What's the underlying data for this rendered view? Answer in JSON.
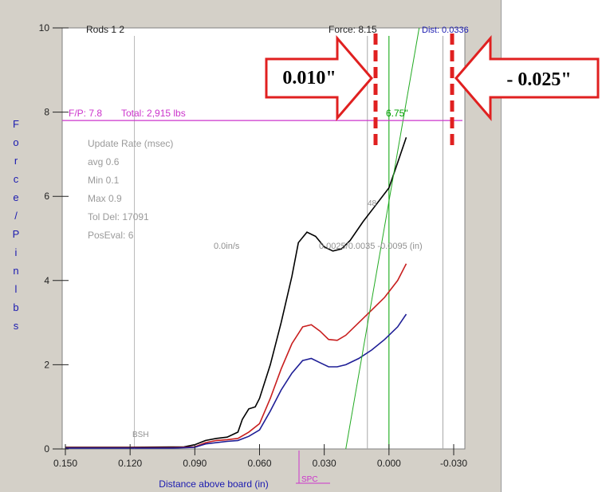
{
  "chart_data": {
    "type": "line",
    "xlabel": "Distance above board (in)",
    "ylabel": "Force/Pin lbs",
    "xlim": [
      0.15,
      -0.03
    ],
    "ylim": [
      0,
      10
    ],
    "x_ticks": [
      "0.150",
      "0.120",
      "0.090",
      "0.060",
      "0.030",
      "0.000",
      "-0.030"
    ],
    "y_ticks": [
      "0",
      "2",
      "4",
      "6",
      "8",
      "10"
    ],
    "grid": false,
    "header": {
      "rods": "Rods 1 2",
      "force": "Force: 8.15",
      "dist": "Dist: 0.0336"
    },
    "fp_line": {
      "y": 7.8,
      "label": "F/P: 7.8",
      "total": "Total: 2,915 lbs"
    },
    "info_lines": [
      "Update Rate (msec)",
      "avg 0.6",
      "Min 0.1",
      "Max 0.9",
      "Tol Del: 17091",
      "PosEval: 6"
    ],
    "annotations": {
      "rate": "0.0in/s",
      "pos": "0.0025/0.0035 -0.0095 (in)",
      "at_x": "6.75\"",
      "bsh": "BSH",
      "spc": "SPC",
      "small_mark": "48"
    },
    "vlines": [
      {
        "x": 0.118,
        "color": "#b8b8b8"
      },
      {
        "x": 0.01,
        "color": "#a8a8a8"
      },
      {
        "x": 0.0,
        "color": "#00a000"
      },
      {
        "x": -0.025,
        "color": "#a8a8a8"
      }
    ],
    "series": [
      {
        "color": "#000000",
        "points": [
          [
            0.15,
            0.04
          ],
          [
            0.12,
            0.04
          ],
          [
            0.095,
            0.05
          ],
          [
            0.09,
            0.1
          ],
          [
            0.085,
            0.2
          ],
          [
            0.08,
            0.25
          ],
          [
            0.075,
            0.28
          ],
          [
            0.07,
            0.4
          ],
          [
            0.068,
            0.7
          ],
          [
            0.065,
            0.95
          ],
          [
            0.062,
            1.0
          ],
          [
            0.06,
            1.2
          ],
          [
            0.055,
            2.0
          ],
          [
            0.05,
            3.0
          ],
          [
            0.045,
            4.1
          ],
          [
            0.042,
            4.9
          ],
          [
            0.038,
            5.15
          ],
          [
            0.034,
            5.05
          ],
          [
            0.03,
            4.8
          ],
          [
            0.026,
            4.7
          ],
          [
            0.022,
            4.75
          ],
          [
            0.018,
            4.95
          ],
          [
            0.012,
            5.4
          ],
          [
            0.006,
            5.8
          ],
          [
            0.0,
            6.2
          ],
          [
            -0.004,
            6.8
          ],
          [
            -0.008,
            7.4
          ]
        ]
      },
      {
        "color": "#c81e1e",
        "points": [
          [
            0.15,
            0.03
          ],
          [
            0.1,
            0.03
          ],
          [
            0.09,
            0.05
          ],
          [
            0.085,
            0.15
          ],
          [
            0.08,
            0.2
          ],
          [
            0.075,
            0.22
          ],
          [
            0.07,
            0.25
          ],
          [
            0.065,
            0.4
          ],
          [
            0.06,
            0.6
          ],
          [
            0.055,
            1.2
          ],
          [
            0.05,
            1.9
          ],
          [
            0.045,
            2.5
          ],
          [
            0.04,
            2.9
          ],
          [
            0.036,
            2.95
          ],
          [
            0.032,
            2.8
          ],
          [
            0.028,
            2.6
          ],
          [
            0.024,
            2.58
          ],
          [
            0.02,
            2.7
          ],
          [
            0.014,
            3.0
          ],
          [
            0.008,
            3.3
          ],
          [
            0.002,
            3.6
          ],
          [
            -0.004,
            4.0
          ],
          [
            -0.008,
            4.4
          ]
        ]
      },
      {
        "color": "#1e1e96",
        "points": [
          [
            0.15,
            0.02
          ],
          [
            0.1,
            0.02
          ],
          [
            0.09,
            0.04
          ],
          [
            0.085,
            0.12
          ],
          [
            0.08,
            0.15
          ],
          [
            0.075,
            0.18
          ],
          [
            0.07,
            0.2
          ],
          [
            0.065,
            0.3
          ],
          [
            0.06,
            0.45
          ],
          [
            0.055,
            0.9
          ],
          [
            0.05,
            1.4
          ],
          [
            0.045,
            1.8
          ],
          [
            0.04,
            2.1
          ],
          [
            0.036,
            2.15
          ],
          [
            0.032,
            2.05
          ],
          [
            0.028,
            1.95
          ],
          [
            0.024,
            1.95
          ],
          [
            0.02,
            2.0
          ],
          [
            0.014,
            2.15
          ],
          [
            0.008,
            2.35
          ],
          [
            0.002,
            2.6
          ],
          [
            -0.004,
            2.9
          ],
          [
            -0.008,
            3.2
          ]
        ]
      },
      {
        "color": "#22aa22",
        "points": [
          [
            0.02,
            0.0
          ],
          [
            -0.014,
            10.0
          ]
        ]
      }
    ],
    "callouts": [
      {
        "text": "0.010\"",
        "direction": "right"
      },
      {
        "text": "- 0.025\"",
        "direction": "left"
      }
    ]
  }
}
